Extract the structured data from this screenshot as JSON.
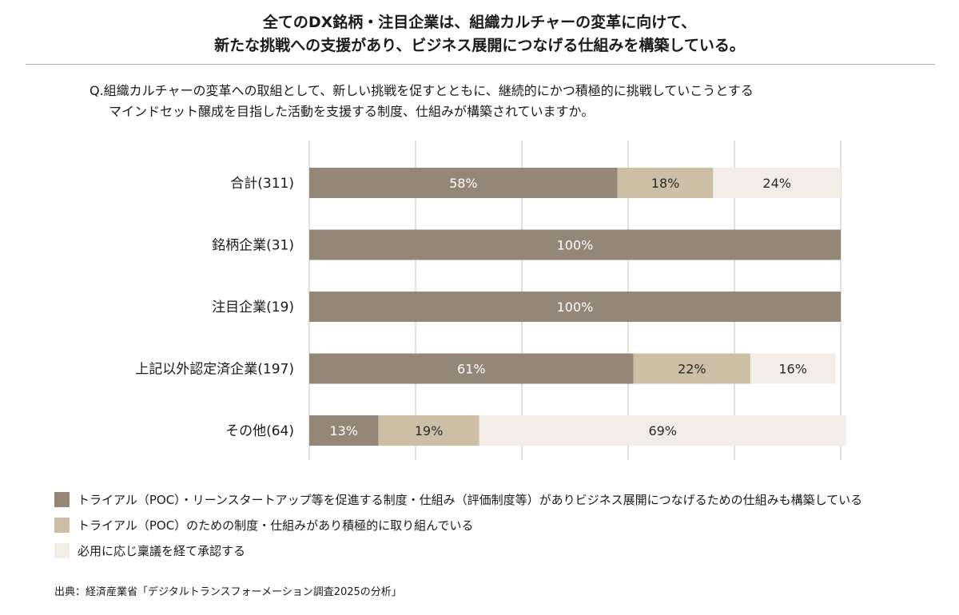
{
  "title": {
    "line1": "全てのDX銘柄・注目企業は、組織カルチャーの変革に向けて、",
    "line2": "新たな挑戦への支援があり、ビジネス展開につなげる仕組みを構築している。"
  },
  "question": {
    "line1": "Q.組織カルチャーの変革への取組として、新しい挑戦を促すとともに、継続的にかつ積極的に挑戦していこうとする",
    "line2": "マインドセット醸成を目指した活動を支援する制度、仕組みが構築されていますか。"
  },
  "legend": [
    {
      "label": "トライアル（POC）・リーンスタートアップ等を促進する制度・仕組み（評価制度等）がありビジネス展開につなげるための仕組みも構築している",
      "color": "#958778"
    },
    {
      "label": "トライアル（POC）のための制度・仕組みがあり積極的に取り組んでいる",
      "color": "#cdbfa6"
    },
    {
      "label": "必用に応じ稟議を経て承認する",
      "color": "#f2ede6"
    }
  ],
  "source": "出典：経済産業省「デジタルトランスフォーメーション調査2025の分析」",
  "chart_data": {
    "type": "bar",
    "orientation": "horizontal",
    "stacked": true,
    "categories": [
      "合計(311)",
      "銘柄企業(31)",
      "注目企業(19)",
      "上記以外認定済企業(197)",
      "その他(64)"
    ],
    "series": [
      {
        "name": "トライアル（POC）・リーンスタートアップ等を促進する制度・仕組み（評価制度等）がありビジネス展開につなげるための仕組みも構築している",
        "color": "#958778",
        "values": [
          58,
          100,
          100,
          61,
          13
        ]
      },
      {
        "name": "トライアル（POC）のための制度・仕組みがあり積極的に取り組んでいる",
        "color": "#cdbfa6",
        "values": [
          18,
          0,
          0,
          22,
          19
        ]
      },
      {
        "name": "必用に応じ稟議を経て承認する",
        "color": "#f2ede6",
        "values": [
          24,
          0,
          0,
          16,
          69
        ]
      }
    ],
    "xlim": [
      0,
      100
    ],
    "grid": true,
    "legend_position": "bottom-left"
  }
}
